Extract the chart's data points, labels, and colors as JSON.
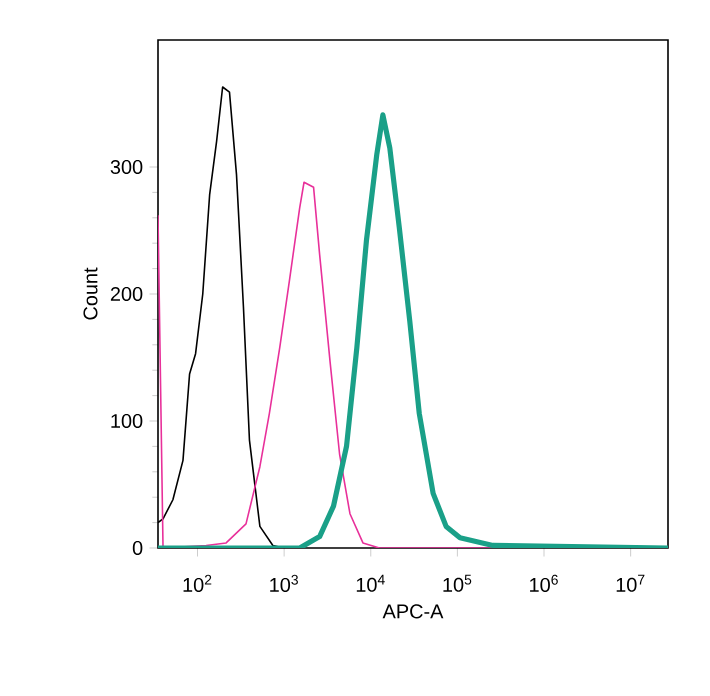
{
  "chart_data": {
    "type": "line",
    "xlabel": "APC-A",
    "ylabel": "Count",
    "log": "x",
    "grid": false,
    "marker": "none",
    "line_style": "solid",
    "xlim": [
      35,
      27000000
    ],
    "ylim": [
      0,
      400
    ],
    "xticks": [
      {
        "value": 100,
        "label": "10$^{2}$"
      },
      {
        "value": 1000,
        "label": "10$^{3}$"
      },
      {
        "value": 10000,
        "label": "10$^{4}$"
      },
      {
        "value": 100000,
        "label": "10$^{5}$"
      },
      {
        "value": 1000000,
        "label": "10$^{6}$"
      },
      {
        "value": 10000000,
        "label": "10$^{7}$"
      }
    ],
    "yticks": [
      0,
      100,
      200,
      300
    ],
    "series": [
      {
        "color": "#000000",
        "x": [
          35,
          40,
          52,
          68,
          81,
          95,
          115,
          138,
          166,
          195,
          234,
          282,
          339,
          398,
          525,
          741,
          977
        ],
        "values": [
          20,
          23,
          38,
          69,
          137,
          153,
          200,
          278,
          320,
          363,
          359,
          294,
          190,
          85,
          17,
          2,
          0
        ]
      },
      {
        "color": "#e8309a",
        "x": [
          35,
          40,
          126,
          214,
          363,
          525,
          676,
          891,
          1148,
          1514,
          1698,
          2188,
          2570,
          3388,
          4365,
          5754,
          8128,
          12589,
          27000000
        ],
        "values": [
          262,
          0,
          2,
          4,
          19,
          64,
          106,
          158,
          210,
          268,
          288,
          284,
          231,
          147,
          74,
          27,
          4,
          0,
          0
        ]
      },
      {
        "color": "#1aa088",
        "x": [
          35,
          1514,
          2570,
          3715,
          5248,
          6918,
          8913,
          11749,
          13804,
          16596,
          21380,
          28184,
          36308,
          52481,
          74131,
          107152,
          257040,
          27000000
        ],
        "values": [
          0,
          0,
          9,
          33,
          80,
          158,
          242,
          310,
          341,
          315,
          252,
          179,
          106,
          43,
          17,
          8,
          2,
          0
        ]
      }
    ]
  }
}
